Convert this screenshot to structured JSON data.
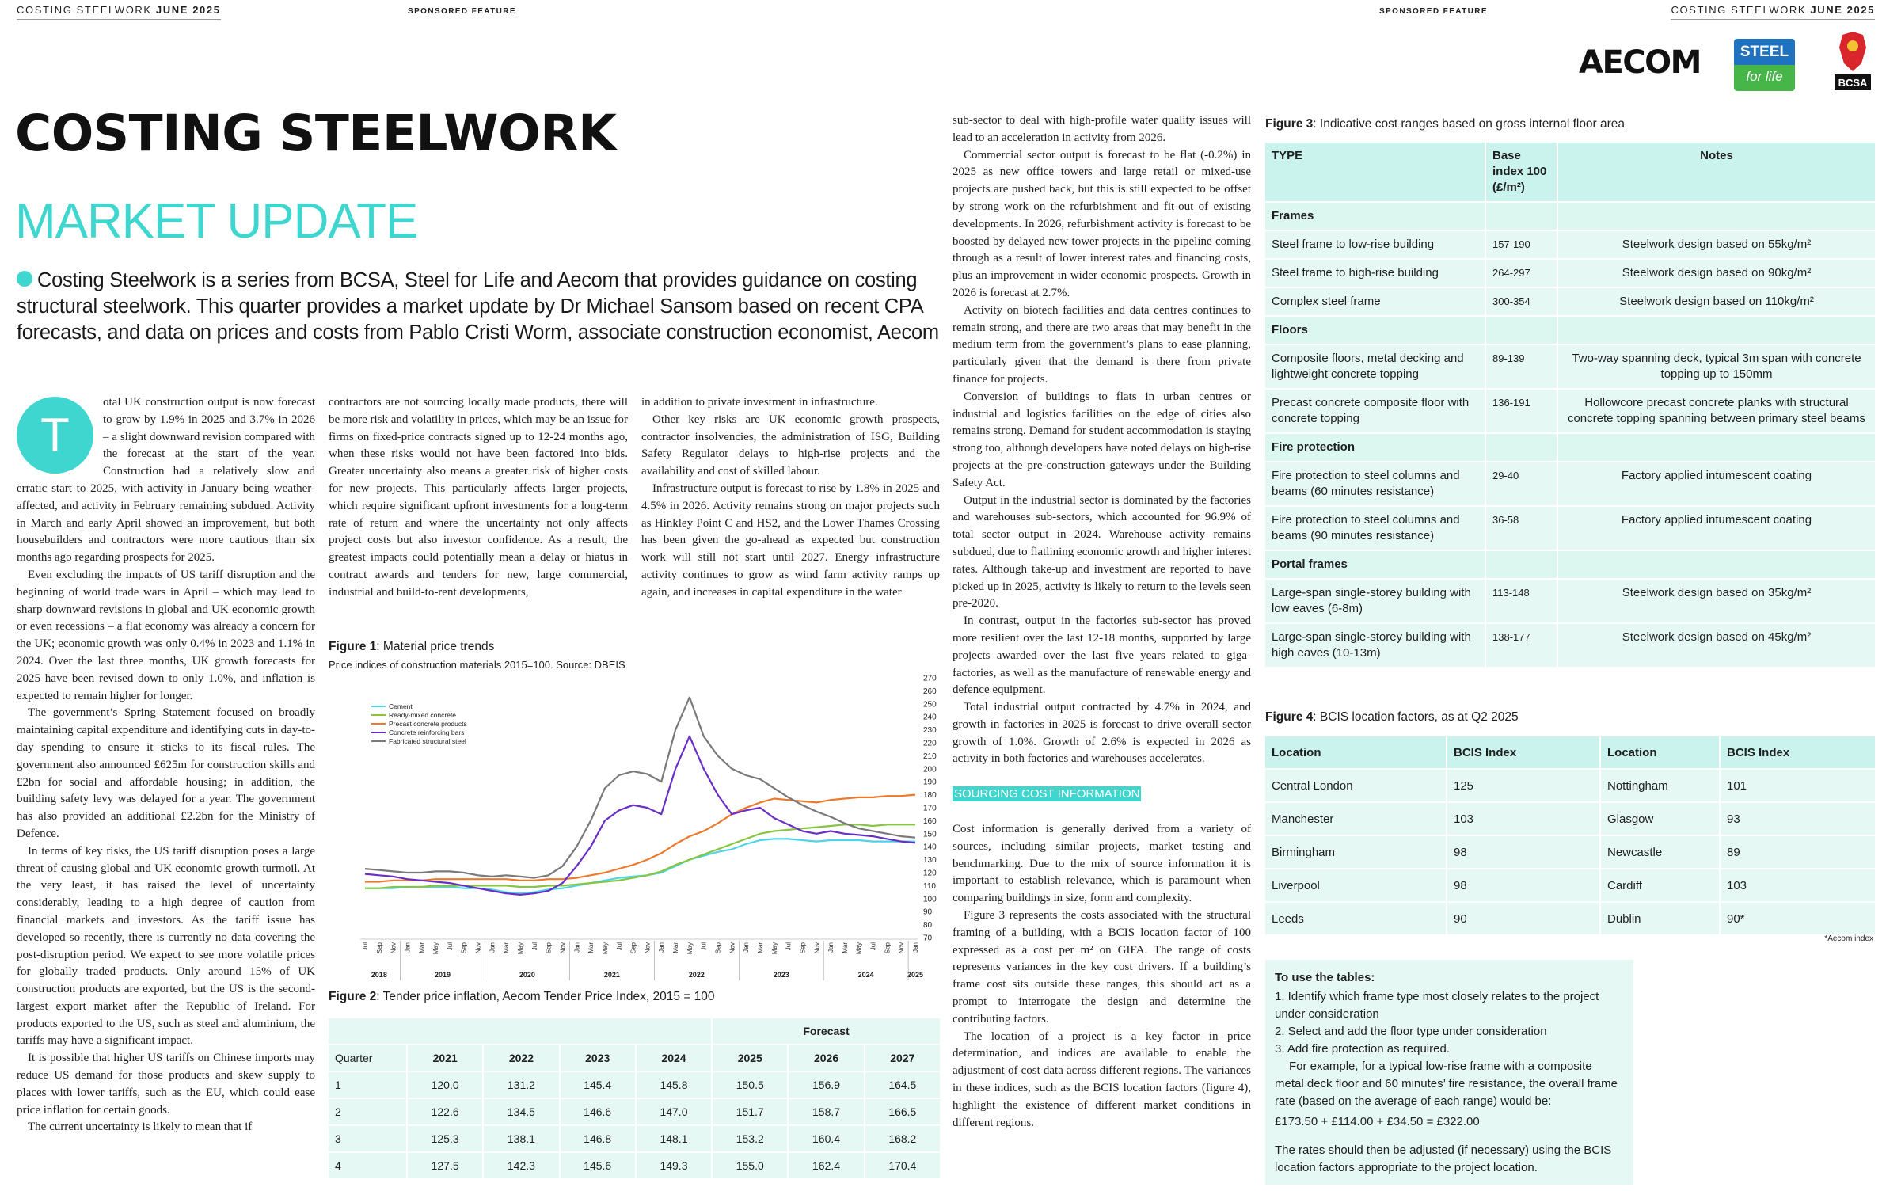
{
  "header": {
    "left_title": "COSTING STEELWORK",
    "left_issue": "JUNE 2025",
    "left_sponsor": "SPONSORED FEATURE",
    "right_sponsor": "SPONSORED FEATURE",
    "right_title": "COSTING STEELWORK",
    "right_issue": "JUNE 2025"
  },
  "logos": {
    "aecom": "AECOM",
    "steel": "STEEL",
    "for_life": "for life",
    "bcsa": "BCSA"
  },
  "article": {
    "title": "COSTING STEELWORK",
    "subtitle": "MARKET UPDATE",
    "intro": "Costing Steelwork is a series from BCSA, Steel for Life and Aecom that provides guidance on costing structural steelwork. This quarter provides a market update by Dr Michael Sansom based on recent CPA forecasts, and data on prices and costs from Pablo Cristi Worm, associate construction economist, Aecom",
    "drop_cap": "T",
    "columns": [
      [
        "otal UK construction output is now forecast to grow by 1.9% in 2025 and 3.7% in 2026 – a slight downward revision compared with the forecast at the start of the year. Construction had a relatively slow and erratic start to 2025, with activity in January being weather-affected, and activity in February remaining subdued. Activity in March and early April showed an improvement, but both housebuilders and contractors were more cautious than six months ago regarding prospects for 2025.",
        "Even excluding the impacts of US tariff disruption and the beginning of world trade wars in April – which may lead to sharp downward revisions in global and UK economic growth or even recessions – a flat economy was already a concern for the UK; economic growth was only 0.4% in 2023 and 1.1% in 2024. Over the last three months, UK growth forecasts for 2025 have been revised down to only 1.0%, and inflation is expected to remain higher for longer.",
        "The government’s Spring Statement focused on broadly maintaining capital expenditure and identifying cuts in day-to-day spending to ensure it sticks to its fiscal rules. The government also announced £625m for construction skills and £2bn for social and affordable housing; in addition, the building safety levy was delayed for a year. The government has also provided an additional £2.2bn for the Ministry of Defence.",
        "In terms of key risks, the US tariff disruption poses a large threat of causing global and UK economic growth turmoil. At the very least, it has raised the level of uncertainty considerably, leading to a high degree of caution from financial markets and investors. As the tariff issue has developed so recently, there is currently no data covering the post-disruption period. We expect to see more volatile prices for globally traded products. Only around 15% of UK construction products are exported, but the US is the second-largest export market after the Republic of Ireland. For products exported to the US, such as steel and aluminium, the tariffs may have a significant impact.",
        "It is possible that higher US tariffs on Chinese imports may reduce US demand for those products and skew supply to places with lower tariffs, such as the EU, which could ease price inflation for certain goods.",
        "The current uncertainty is likely to mean that if"
      ],
      [
        "contractors are not sourcing locally made products, there will be more risk and volatility in prices, which may be an issue for firms on fixed-price contracts signed up to 12-24 months ago, when these risks would not have been factored into bids. Greater uncertainty also means a greater risk of higher costs for new projects. This particularly affects larger projects, which require significant upfront investments for a long-term rate of return and where the uncertainty not only affects project costs but also investor confidence. As a result, the greatest impacts could potentially mean a delay or hiatus in contract awards and tenders for new, large commercial, industrial and build-to-rent developments,"
      ],
      [
        "in addition to private investment in infrastructure.",
        "Other key risks are UK economic growth prospects, contractor insolvencies, the administration of ISG, Building Safety Regulator delays to high-rise projects and the availability and cost of skilled labour.",
        "Infrastructure output is forecast to rise by 1.8% in 2025 and 4.5% in 2026. Activity remains strong on major projects such as Hinkley Point C and HS2, and the Lower Thames Crossing has been given the go-ahead as expected but construction work will still not start until 2027. Energy infrastructure activity continues to grow as wind farm activity ramps up again, and increases in capital expenditure in the water"
      ],
      [
        "sub-sector to deal with high-profile water quality issues will lead to an acceleration in activity from 2026.",
        "Commercial sector output is forecast to be flat (-0.2%) in 2025 as new office towers and large retail or mixed-use projects are pushed back, but this is still expected to be offset by strong work on the refurbishment and fit-out of existing developments. In 2026, refurbishment activity is forecast to be boosted by delayed new tower projects in the pipeline coming through as a result of lower interest rates and financing costs, plus an improvement in wider economic prospects. Growth in 2026 is forecast at 2.7%.",
        "Activity on biotech facilities and data centres continues to remain strong, and there are two areas that may benefit in the medium term from the government’s plans to ease planning, particularly given that the demand is there from private finance for projects.",
        "Conversion of buildings to flats in urban centres or industrial and logistics facilities on the edge of cities also remains strong. Demand for student accommodation is staying strong too, although developers have noted delays on high-rise projects at the pre-construction gateways under the Building Safety Act.",
        "Output in the industrial sector is dominated by the factories and warehouses sub-sectors, which accounted for 96.9% of total sector output in 2024. Warehouse activity remains subdued, due to flatlining economic growth and higher interest rates. Although take-up and investment are reported to have picked up in 2025, activity is likely to return to the levels seen pre-2020.",
        "In contrast, output in the factories sub-sector has proved more resilient over the last 12-18 months, supported by large projects awarded over the last five years related to giga-factories, as well as the manufacture of renewable energy and defence equipment.",
        "Total industrial output contracted by 4.7% in 2024, and growth in factories in 2025 is forecast to drive overall sector growth of 1.0%. Growth of 2.6% is expected in 2026 as activity in both factories and warehouses accelerates."
      ]
    ],
    "section_heading": "SOURCING COST INFORMATION",
    "section_paragraphs": [
      "Cost information is generally derived from a variety of sources, including similar projects, market testing and benchmarking. Due to the mix of source information it is important to establish relevance, which is paramount when comparing buildings in size, form and complexity.",
      "Figure 3 represents the costs associated with the structural framing of a building, with a BCIS location factor of 100 expressed as a cost per m² on GIFA. The range of costs represents variances in the key cost drivers. If a building’s frame cost sits outside these ranges, this should act as a prompt to interrogate the design and determine the contributing factors.",
      "The location of a project is a key factor in price determination, and indices are available to enable the adjustment of cost data across different regions. The variances in these indices, such as the BCIS location factors (figure 4), highlight the existence of different market conditions in different regions."
    ]
  },
  "figure1": {
    "label": "Figure 1",
    "caption": ": Material price trends",
    "subtitle": "Price indices of construction materials 2015=100. Source: DBEIS",
    "chart": {
      "type": "line",
      "categories": [
        "Jul",
        "Sep",
        "Nov",
        "Jan",
        "Mar",
        "May",
        "Jul",
        "Sep",
        "Nov",
        "Jan",
        "Mar",
        "May",
        "Jul",
        "Sep",
        "Nov",
        "Jan",
        "Mar",
        "May",
        "Jul",
        "Sep",
        "Nov",
        "Jan",
        "Mar",
        "May",
        "Jul",
        "Sep",
        "Nov",
        "Jan",
        "Mar",
        "May",
        "Jul",
        "Sep",
        "Nov",
        "Jan",
        "Mar",
        "May",
        "Jul",
        "Sep",
        "Nov",
        "Jan"
      ],
      "year_labels": [
        "2018",
        "2019",
        "2020",
        "2021",
        "2022",
        "2023",
        "2024",
        "2025"
      ],
      "ylim": [
        70,
        270
      ],
      "yticks": [
        70,
        80,
        90,
        100,
        110,
        120,
        130,
        140,
        150,
        160,
        170,
        180,
        190,
        200,
        210,
        220,
        230,
        240,
        250,
        260,
        270
      ],
      "grid": false,
      "legend": "top-left",
      "series": [
        {
          "name": "Cement",
          "color": "#4fd3e6",
          "values": [
            108,
            108,
            108,
            109,
            109,
            109,
            109,
            108,
            108,
            107,
            105,
            104,
            105,
            107,
            108,
            110,
            112,
            114,
            116,
            117,
            118,
            120,
            125,
            130,
            133,
            136,
            138,
            142,
            145,
            146,
            146,
            145,
            144,
            145,
            145,
            145,
            144,
            144,
            144,
            144
          ]
        },
        {
          "name": "Ready-mixed concrete",
          "color": "#86c540",
          "values": [
            108,
            108,
            109,
            109,
            109,
            110,
            110,
            110,
            110,
            110,
            110,
            109,
            109,
            110,
            110,
            111,
            112,
            113,
            114,
            116,
            118,
            121,
            126,
            130,
            134,
            138,
            142,
            146,
            150,
            152,
            153,
            154,
            155,
            156,
            157,
            157,
            156,
            157,
            157,
            157
          ]
        },
        {
          "name": "Precast concrete products",
          "color": "#ec7a2c",
          "values": [
            113,
            113,
            114,
            114,
            114,
            115,
            115,
            115,
            115,
            115,
            115,
            114,
            114,
            115,
            115,
            116,
            118,
            120,
            123,
            126,
            130,
            135,
            142,
            148,
            152,
            158,
            165,
            170,
            174,
            177,
            176,
            175,
            174,
            176,
            177,
            178,
            178,
            179,
            179,
            180
          ]
        },
        {
          "name": "Concrete reinforcing bars",
          "color": "#6a2fc4",
          "values": [
            119,
            118,
            117,
            115,
            114,
            113,
            112,
            110,
            108,
            106,
            104,
            103,
            104,
            106,
            112,
            125,
            140,
            160,
            168,
            172,
            170,
            165,
            200,
            225,
            200,
            180,
            165,
            168,
            170,
            162,
            157,
            152,
            150,
            152,
            150,
            149,
            148,
            146,
            144,
            143
          ]
        },
        {
          "name": "Fabricated structural steel",
          "color": "#7a7a7a",
          "values": [
            123,
            122,
            121,
            120,
            120,
            121,
            121,
            120,
            118,
            117,
            118,
            117,
            116,
            118,
            125,
            140,
            160,
            185,
            195,
            198,
            196,
            190,
            230,
            255,
            225,
            210,
            200,
            195,
            192,
            185,
            178,
            172,
            167,
            163,
            158,
            154,
            152,
            150,
            148,
            147
          ]
        }
      ]
    }
  },
  "figure2": {
    "label": "Figure 2",
    "caption": ": Tender price inflation, Aecom Tender Price Index, 2015 = 100",
    "forecast_label": "Forecast",
    "header": [
      "Quarter",
      "2021",
      "2022",
      "2023",
      "2024",
      "2025",
      "2026",
      "2027"
    ],
    "rows": [
      [
        "1",
        "120.0",
        "131.2",
        "145.4",
        "145.8",
        "150.5",
        "156.9",
        "164.5"
      ],
      [
        "2",
        "122.6",
        "134.5",
        "146.6",
        "147.0",
        "151.7",
        "158.7",
        "166.5"
      ],
      [
        "3",
        "125.3",
        "138.1",
        "146.8",
        "148.1",
        "153.2",
        "160.4",
        "168.2"
      ],
      [
        "4",
        "127.5",
        "142.3",
        "145.6",
        "149.3",
        "155.0",
        "162.4",
        "170.4"
      ]
    ]
  },
  "figure3": {
    "label": "Figure 3",
    "caption": ": Indicative cost ranges based on gross internal floor area",
    "header": [
      "TYPE",
      "Base index 100 (£/m²)",
      "Notes"
    ],
    "sections": [
      {
        "name": "Frames",
        "rows": [
          [
            "Steel frame to low-rise building",
            "157-190",
            "Steelwork design based on 55kg/m²"
          ],
          [
            "Steel frame to high-rise building",
            "264-297",
            "Steelwork design based on 90kg/m²"
          ],
          [
            "Complex steel frame",
            "300-354",
            "Steelwork design based on 110kg/m²"
          ]
        ]
      },
      {
        "name": "Floors",
        "rows": [
          [
            "Composite floors, metal decking and lightweight concrete topping",
            "89-139",
            "Two-way spanning deck, typical 3m span with concrete topping up to 150mm"
          ],
          [
            "Precast concrete composite floor with concrete topping",
            "136-191",
            "Hollowcore precast concrete planks with structural concrete topping spanning between primary steel beams"
          ]
        ]
      },
      {
        "name": "Fire protection",
        "rows": [
          [
            "Fire protection to steel columns and beams (60 minutes resistance)",
            "29-40",
            "Factory applied intumescent coating"
          ],
          [
            "Fire protection to steel columns and beams (90 minutes resistance)",
            "36-58",
            "Factory applied intumescent coating"
          ]
        ]
      },
      {
        "name": "Portal frames",
        "rows": [
          [
            "Large-span single-storey building with low eaves (6-8m)",
            "113-148",
            "Steelwork design based on 35kg/m²"
          ],
          [
            "Large-span single-storey building with high eaves (10-13m)",
            "138-177",
            "Steelwork design based on 45kg/m²"
          ]
        ]
      }
    ]
  },
  "figure4": {
    "label": "Figure 4",
    "caption": ": BCIS location factors, as at Q2 2025",
    "header": [
      "Location",
      "BCIS Index",
      "Location",
      "BCIS Index"
    ],
    "rows": [
      [
        "Central London",
        "125",
        "Nottingham",
        "101"
      ],
      [
        "Manchester",
        "103",
        "Glasgow",
        "93"
      ],
      [
        "Birmingham",
        "98",
        "Newcastle",
        "89"
      ],
      [
        "Liverpool",
        "98",
        "Cardiff",
        "103"
      ],
      [
        "Leeds",
        "90",
        "Dublin",
        "90*"
      ]
    ],
    "note": "*Aecom index"
  },
  "how_to": {
    "title": "To use the tables:",
    "steps": [
      "1. Identify which frame type most closely relates to the project under consideration",
      "2. Select and add the floor type under consideration",
      "3. Add fire protection as required."
    ],
    "example": "For example, for a typical low-rise frame with a composite metal deck floor and 60 minutes’ fire resistance, the overall frame rate (based on the average of each range) would be:",
    "formula": "£173.50 + £114.00 + £34.50 = £322.00",
    "closing": "The rates should then be adjusted (if necessary) using the BCIS location factors appropriate to the project location."
  }
}
